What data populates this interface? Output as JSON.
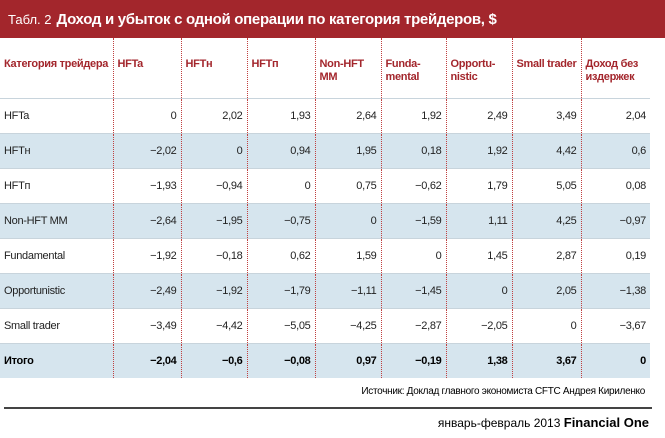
{
  "header": {
    "label": "Табл. 2",
    "title": "Доход и убыток с одной операции по категория трейдеров, $"
  },
  "table": {
    "columns": [
      "Категория трейдера",
      "HFTa",
      "HFTн",
      "HFTп",
      "Non-HFT MM",
      "Funda-\nmental",
      "Opportu-\nnistic",
      "Small trader",
      "Доход без\nиздержек"
    ],
    "rows": [
      [
        "HFTa",
        "0",
        "2,02",
        "1,93",
        "2,64",
        "1,92",
        "2,49",
        "3,49",
        "2,04"
      ],
      [
        "HFTн",
        "−2,02",
        "0",
        "0,94",
        "1,95",
        "0,18",
        "1,92",
        "4,42",
        "0,6"
      ],
      [
        "HFTп",
        "−1,93",
        "−0,94",
        "0",
        "0,75",
        "−0,62",
        "1,79",
        "5,05",
        "0,08"
      ],
      [
        "Non-HFT MM",
        "−2,64",
        "−1,95",
        "−0,75",
        "0",
        "−1,59",
        "1,11",
        "4,25",
        "−0,97"
      ],
      [
        "Fundamental",
        "−1,92",
        "−0,18",
        "0,62",
        "1,59",
        "0",
        "1,45",
        "2,87",
        "0,19"
      ],
      [
        "Opportunistic",
        "−2,49",
        "−1,92",
        "−1,79",
        "−1,11",
        "−1,45",
        "0",
        "2,05",
        "−1,38"
      ],
      [
        "Small trader",
        "−3,49",
        "−4,42",
        "−5,05",
        "−4,25",
        "−2,87",
        "−2,05",
        "0",
        "−3,67"
      ],
      [
        "Итого",
        "−2,04",
        "−0,6",
        "−0,08",
        "0,97",
        "−0,19",
        "1,38",
        "3,67",
        "0"
      ]
    ]
  },
  "source": "Источник: Доклад главного экономиста CFTC Андрея Кириленко",
  "footer": {
    "date": "январь-февраль 2013",
    "brand": "Financial One"
  }
}
